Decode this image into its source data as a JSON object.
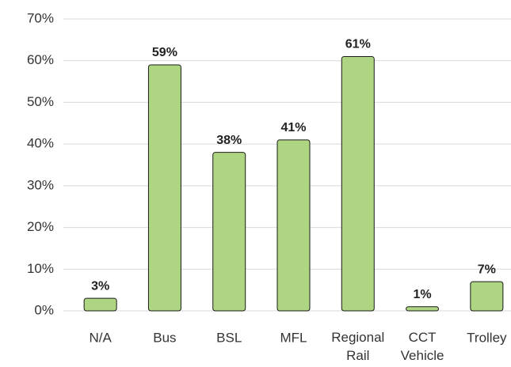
{
  "chart_data": {
    "type": "bar",
    "categories": [
      "N/A",
      "Bus",
      "BSL",
      "MFL",
      "Regional Rail",
      "CCT Vehicle",
      "Trolley"
    ],
    "values": [
      3,
      59,
      38,
      41,
      61,
      1,
      7
    ],
    "value_labels": [
      "3%",
      "59%",
      "38%",
      "41%",
      "61%",
      "1%",
      "7%"
    ],
    "color": "#aed581",
    "ylim": [
      0,
      70
    ],
    "yticks": [
      {
        "value": 0,
        "label": "0%"
      },
      {
        "value": 10,
        "label": "10%"
      },
      {
        "value": 20,
        "label": "20%"
      },
      {
        "value": 30,
        "label": "30%"
      },
      {
        "value": 40,
        "label": "40%"
      },
      {
        "value": 50,
        "label": "50%"
      },
      {
        "value": 60,
        "label": "60%"
      },
      {
        "value": 70,
        "label": "70%"
      }
    ],
    "grid": true
  }
}
